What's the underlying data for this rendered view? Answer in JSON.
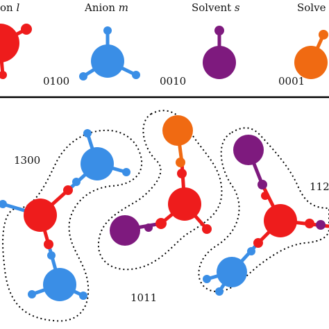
{
  "legend": {
    "cation": {
      "label": "on l",
      "code": ""
    },
    "anion": {
      "label": "Anion m",
      "code": "0100"
    },
    "solvent_s": {
      "label": "Solvent s",
      "code": "0010"
    },
    "solvent_t": {
      "label": "Solve",
      "code": "0001"
    }
  },
  "clusters": [
    {
      "code": "1300"
    },
    {
      "code": "1011"
    },
    {
      "code": "112"
    }
  ],
  "colors": {
    "cation": "#ee1c1c",
    "anion": "#3a8ee6",
    "solvent_s": "#7e1a7e",
    "solvent_t": "#f06a12",
    "divider": "#000000",
    "dotted_outline": "#000000"
  }
}
